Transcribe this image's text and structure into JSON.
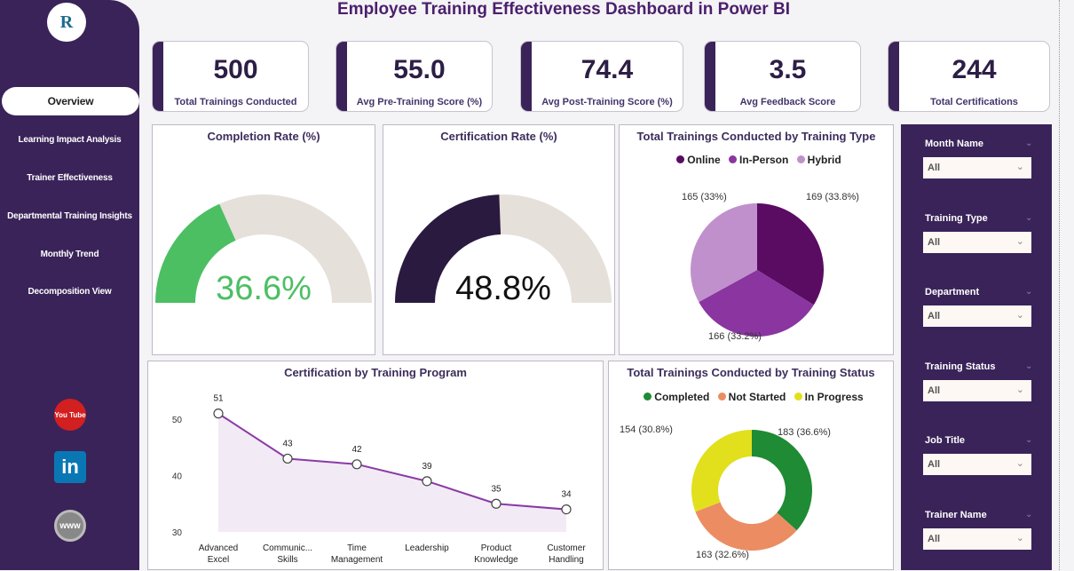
{
  "title": "Employee Training Effectiveness Dashboard in Power BI",
  "nav": [
    {
      "label": "Overview",
      "active": true
    },
    {
      "label": "Learning Impact Analysis"
    },
    {
      "label": "Trainer Effectiveness"
    },
    {
      "label": "Departmental Training Insights"
    },
    {
      "label": "Monthly Trend"
    },
    {
      "label": "Decomposition View"
    }
  ],
  "social": {
    "youtube": "You Tube",
    "linkedin": "in",
    "web": "www"
  },
  "kpis": [
    {
      "value": "500",
      "label": "Total Trainings Conducted"
    },
    {
      "value": "55.0",
      "label": "Avg Pre-Training Score (%)"
    },
    {
      "value": "74.4",
      "label": "Avg Post-Training Score (%)"
    },
    {
      "value": "3.5",
      "label": "Avg Feedback Score"
    },
    {
      "value": "244",
      "label": "Total Certifications"
    }
  ],
  "completion": {
    "title": "Completion Rate (%)",
    "value": 36.6,
    "label": "36.6%",
    "color": "#4cbf63"
  },
  "certification": {
    "title": "Certification Rate (%)",
    "value": 48.8,
    "label": "48.8%",
    "color": "#2a1a3f"
  },
  "chart_data": [
    {
      "type": "pie",
      "title": "Total Trainings Conducted by Training Type",
      "categories": [
        "Online",
        "In-Person",
        "Hybrid"
      ],
      "values": [
        169,
        166,
        165
      ],
      "labels": [
        "169 (33.8%)",
        "166 (33.2%)",
        "165 (33%)"
      ],
      "colors": [
        "#5a0c63",
        "#8a35a0",
        "#c090cc"
      ],
      "legend": "top"
    },
    {
      "type": "line",
      "title": "Certification by Training Program",
      "categories": [
        "Advanced Excel",
        "Communic... Skills",
        "Time Management",
        "Leadership",
        "Product Knowledge",
        "Customer Handling"
      ],
      "cat_lines": [
        [
          "Advanced",
          "Excel"
        ],
        [
          "Communic...",
          "Skills"
        ],
        [
          "Time",
          "Management"
        ],
        [
          "Leadership",
          ""
        ],
        [
          "Product",
          "Knowledge"
        ],
        [
          "Customer",
          "Handling"
        ]
      ],
      "values": [
        51,
        43,
        42,
        39,
        35,
        34
      ],
      "yticks": [
        30,
        40,
        50
      ],
      "ylim": [
        30,
        52
      ]
    },
    {
      "type": "pie",
      "donut": true,
      "title": "Total Trainings Conducted by Training Status",
      "categories": [
        "Completed",
        "Not Started",
        "In Progress"
      ],
      "values": [
        183,
        163,
        154
      ],
      "labels": [
        "183 (36.6%)",
        "163 (32.6%)",
        "154 (30.8%)"
      ],
      "colors": [
        "#1f8b34",
        "#ec8c62",
        "#e2df1d"
      ],
      "legend": "top"
    }
  ],
  "slicers": [
    {
      "label": "Month Name",
      "value": "All"
    },
    {
      "label": "Training Type",
      "value": "All"
    },
    {
      "label": "Department",
      "value": "All"
    },
    {
      "label": "Training Status",
      "value": "All"
    },
    {
      "label": "Job Title",
      "value": "All"
    },
    {
      "label": "Trainer Name",
      "value": "All"
    }
  ]
}
